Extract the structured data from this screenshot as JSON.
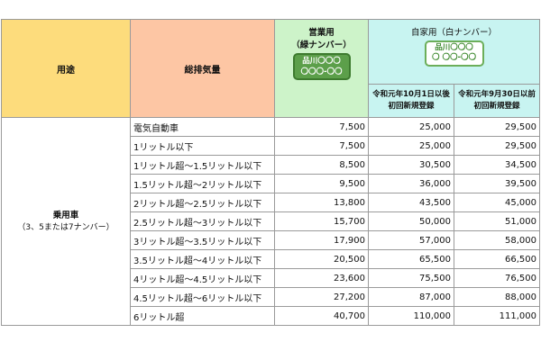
{
  "header": {
    "usage": "用途",
    "displacement": "総排気量",
    "commercial": {
      "title": "営業用",
      "paren": "（緑ナンバー）",
      "plate_line1": "品川〇〇〇",
      "plate_line2": "〇〇〇-〇〇"
    },
    "private": {
      "title": "自家用（白ナンバー）",
      "plate_line1": "品川〇〇〇",
      "plate_line2": "〇 〇〇-〇〇",
      "col_after": "令和元年10月1日以後初回新規登録",
      "col_before": "令和元年9月30日以前初回新規登録"
    }
  },
  "category": {
    "label": "乗用車",
    "sub": "（3、5または7ナンバー）"
  },
  "rows": [
    {
      "disp": "電気自動車",
      "commercial": "7,500",
      "after": "25,000",
      "before": "29,500"
    },
    {
      "disp": "1リットル以下",
      "commercial": "7,500",
      "after": "25,000",
      "before": "29,500"
    },
    {
      "disp": "1リットル超〜1.5リットル以下",
      "commercial": "8,500",
      "after": "30,500",
      "before": "34,500"
    },
    {
      "disp": "1.5リットル超〜2リットル以下",
      "commercial": "9,500",
      "after": "36,000",
      "before": "39,500"
    },
    {
      "disp": "2リットル超〜2.5リットル以下",
      "commercial": "13,800",
      "after": "43,500",
      "before": "45,000"
    },
    {
      "disp": "2.5リットル超〜3リットル以下",
      "commercial": "15,700",
      "after": "50,000",
      "before": "51,000"
    },
    {
      "disp": "3リットル超〜3.5リットル以下",
      "commercial": "17,900",
      "after": "57,000",
      "before": "58,000"
    },
    {
      "disp": "3.5リットル超〜4リットル以下",
      "commercial": "20,500",
      "after": "65,500",
      "before": "66,500"
    },
    {
      "disp": "4リットル超〜4.5リットル以下",
      "commercial": "23,600",
      "after": "75,500",
      "before": "76,500"
    },
    {
      "disp": "4.5リットル超〜6リットル以下",
      "commercial": "27,200",
      "after": "87,000",
      "before": "88,000"
    },
    {
      "disp": "6リットル超",
      "commercial": "40,700",
      "after": "110,000",
      "before": "111,000"
    }
  ],
  "colors": {
    "usage_header": "#fddc7c",
    "displacement_header": "#fdc6a4",
    "commercial_header": "#cdf3c9",
    "private_header": "#c8f4f1",
    "green_plate": "#5c9f4a"
  }
}
